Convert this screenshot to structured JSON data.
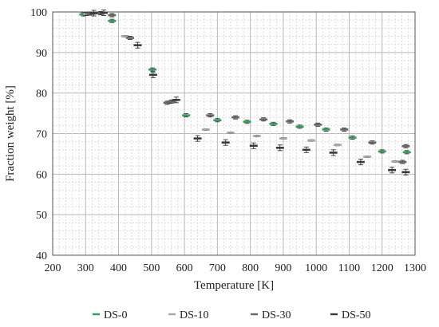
{
  "chart_data": {
    "type": "scatter",
    "title": "",
    "xlabel": "Temperature [K]",
    "ylabel": "Fraction weight [%]",
    "xlim": [
      200,
      1300
    ],
    "ylim": [
      40,
      100
    ],
    "xticks": [
      200,
      300,
      400,
      500,
      600,
      700,
      800,
      900,
      1000,
      1100,
      1200,
      1300
    ],
    "yticks": [
      40,
      50,
      60,
      70,
      80,
      90,
      100
    ],
    "grid": true,
    "legend_position": "bottom",
    "error_bars": true,
    "series": [
      {
        "name": "DS-0",
        "color": "#2e9e5b",
        "err": 0.4,
        "points": [
          [
            293,
            99.4
          ],
          [
            302,
            99.5
          ],
          [
            380,
            97.8
          ],
          [
            503,
            85.8
          ],
          [
            605,
            74.5
          ],
          [
            700,
            73.3
          ],
          [
            790,
            72.9
          ],
          [
            870,
            72.4
          ],
          [
            950,
            71.7
          ],
          [
            1030,
            71.0
          ],
          [
            1110,
            69.0
          ],
          [
            1200,
            65.6
          ],
          [
            1275,
            65.4
          ]
        ]
      },
      {
        "name": "DS-10",
        "color": "#a8a8a8",
        "err": 0.2,
        "points": [
          [
            305,
            99.5
          ],
          [
            320,
            99.5
          ],
          [
            420,
            94.0
          ],
          [
            555,
            77.8
          ],
          [
            665,
            71.0
          ],
          [
            740,
            70.2
          ],
          [
            820,
            69.4
          ],
          [
            900,
            68.8
          ],
          [
            985,
            68.3
          ],
          [
            1065,
            67.2
          ],
          [
            1155,
            64.3
          ],
          [
            1240,
            63.1
          ]
        ]
      },
      {
        "name": "DS-30",
        "color": "#666666",
        "err": 0.4,
        "points": [
          [
            312,
            99.6
          ],
          [
            345,
            99.7
          ],
          [
            380,
            99.2
          ],
          [
            435,
            93.6
          ],
          [
            548,
            77.6
          ],
          [
            560,
            77.9
          ],
          [
            678,
            74.5
          ],
          [
            755,
            74.0
          ],
          [
            840,
            73.5
          ],
          [
            920,
            73.0
          ],
          [
            1005,
            72.2
          ],
          [
            1085,
            71.0
          ],
          [
            1170,
            67.8
          ],
          [
            1262,
            63.0
          ],
          [
            1272,
            66.9
          ]
        ]
      },
      {
        "name": "DS-50",
        "color": "#3a3a3a",
        "err": 0.7,
        "points": [
          [
            325,
            99.7
          ],
          [
            355,
            99.8
          ],
          [
            458,
            91.8
          ],
          [
            505,
            84.5
          ],
          [
            575,
            78.3
          ],
          [
            640,
            68.8
          ],
          [
            725,
            67.8
          ],
          [
            810,
            67.0
          ],
          [
            890,
            66.5
          ],
          [
            970,
            66.0
          ],
          [
            1052,
            65.3
          ],
          [
            1135,
            63.0
          ],
          [
            1230,
            61.0
          ],
          [
            1272,
            60.5
          ]
        ]
      }
    ]
  }
}
